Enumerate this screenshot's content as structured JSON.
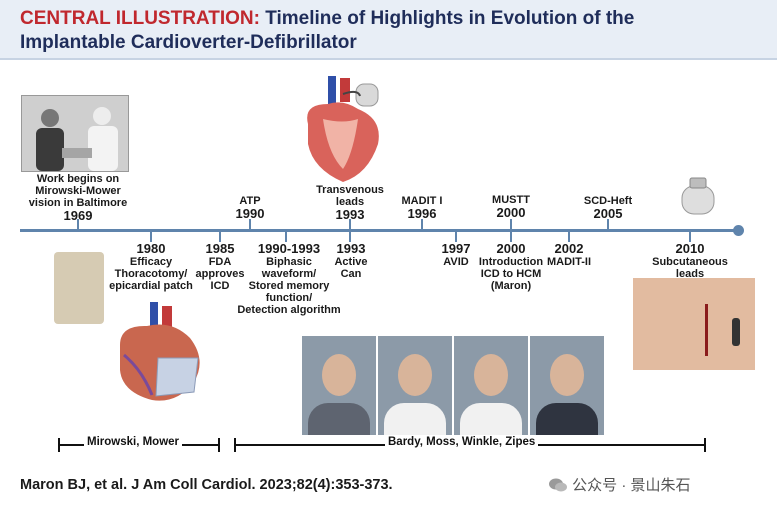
{
  "header": {
    "label": "CENTRAL ILLUSTRATION:",
    "title_rest": "Timeline of Highlights in Evolution of the",
    "title_line2": "Implantable Cardioverter-Defibrillator"
  },
  "events_above": [
    {
      "text": "Work begins on\nMirowski-Mower\nvision in Baltimore",
      "year": "1969"
    },
    {
      "text": "ATP",
      "year": "1990"
    },
    {
      "text": "Transvenous\nleads",
      "year": "1993"
    },
    {
      "text": "MADIT I",
      "year": "1996"
    },
    {
      "text": "MUSTT",
      "year": "2000"
    },
    {
      "text": "SCD-Heft",
      "year": "2005"
    }
  ],
  "events_below": [
    {
      "year": "1980",
      "text": "Efficacy\nThoracotomy/\nepicardial patch"
    },
    {
      "year": "1985",
      "text": "FDA\napproves\nICD"
    },
    {
      "year": "1990-1993",
      "text": "Biphasic\nwaveform/\nStored memory\nfunction/\nDetection algorithm"
    },
    {
      "year": "1993",
      "text": "Active\nCan"
    },
    {
      "year": "1997",
      "text": "AVID"
    },
    {
      "year": "2000",
      "text": "Introduction\nICD to HCM\n(Maron)"
    },
    {
      "year": "2002",
      "text": "MADIT-II"
    },
    {
      "year": "2010",
      "text": "Subcutaneous\nleads"
    }
  ],
  "brackets": {
    "left_label": "Mirowski, Mower",
    "right_label": "Bardy, Moss, Winkle, Zipes"
  },
  "citation": "Maron BJ, et al. J Am Coll Cardiol. 2023;82(4):353-373.",
  "watermark": "公众号 · 景山朱石",
  "colors": {
    "timeline": "#5f84ac",
    "title_red": "#c0282e",
    "title_navy": "#1f2d5a",
    "header_bg": "#e8eef6"
  }
}
